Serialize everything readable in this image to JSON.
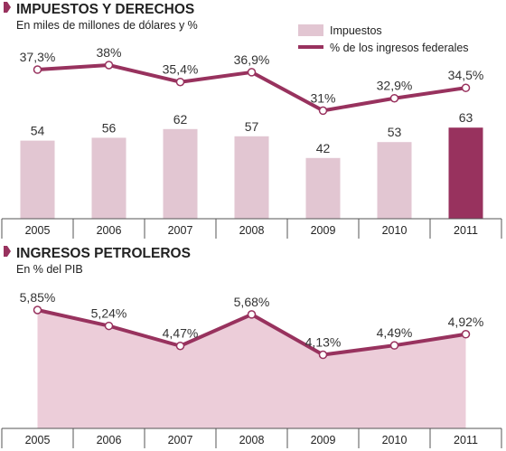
{
  "charts": {
    "taxes": {
      "title": "IMPUESTOS Y DERECHOS",
      "subtitle": "En miles de millones de dólares  y %",
      "legend": {
        "bars_label": "Impuestos",
        "line_label": "% de los ingresos federales"
      }
    },
    "oil": {
      "title": "INGRESOS PETROLEROS",
      "subtitle": "En % del PIB"
    }
  },
  "colors": {
    "bar": "#e2c6d2",
    "bar_highlight": "#98325e",
    "line": "#98325e",
    "area": "#eccdd9",
    "marker_fill": "#ffffff",
    "bullet": "#98325e",
    "axis": "#555555",
    "text": "#222222"
  },
  "chart_data": [
    {
      "type": "bar",
      "title": "IMPUESTOS Y DERECHOS",
      "subtitle": "En miles de millones de dólares  y %",
      "categories": [
        "2005",
        "2006",
        "2007",
        "2008",
        "2009",
        "2010",
        "2011"
      ],
      "series": [
        {
          "name": "Impuestos",
          "type": "bar",
          "values": [
            54,
            56,
            62,
            57,
            42,
            53,
            63
          ],
          "labels": [
            "54",
            "56",
            "62",
            "57",
            "42",
            "53",
            "63"
          ],
          "highlight_index": 6
        },
        {
          "name": "% de los ingresos federales",
          "type": "line",
          "values": [
            37.3,
            38,
            35.4,
            36.9,
            31,
            32.9,
            34.5
          ],
          "labels": [
            "37,3%",
            "38%",
            "35,4%",
            "36,9%",
            "31%",
            "32,9%",
            "34,5%"
          ]
        }
      ],
      "grid": false,
      "legend_position": "top-right"
    },
    {
      "type": "area",
      "title": "INGRESOS PETROLEROS",
      "subtitle": "En % del PIB",
      "categories": [
        "2005",
        "2006",
        "2007",
        "2008",
        "2009",
        "2010",
        "2011"
      ],
      "values": [
        5.85,
        5.24,
        4.47,
        5.68,
        4.13,
        4.49,
        4.92
      ],
      "labels": [
        "5,85%",
        "5,24%",
        "4,47%",
        "5,68%",
        "4,13%",
        "4,49%",
        "4,92%"
      ],
      "grid": false
    }
  ]
}
